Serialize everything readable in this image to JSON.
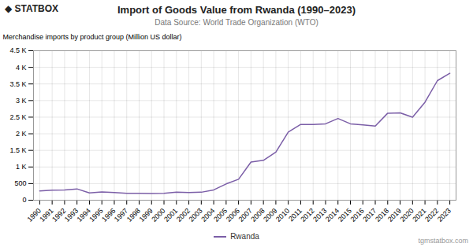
{
  "chart_data": {
    "type": "line",
    "title": "Import of Goods Value from Rwanda (1990–2023)",
    "subtitle": "Data Source: World Trade Organization (WTO)",
    "ylabel": "Merchandise imports by product group (Million US dollar)",
    "x": [
      1990,
      1991,
      1992,
      1993,
      1994,
      1995,
      1996,
      1997,
      1998,
      1999,
      2000,
      2001,
      2002,
      2003,
      2004,
      2005,
      2006,
      2007,
      2008,
      2009,
      2010,
      2011,
      2012,
      2013,
      2014,
      2015,
      2016,
      2017,
      2018,
      2019,
      2020,
      2021,
      2022,
      2023
    ],
    "series": [
      {
        "name": "Rwanda",
        "color": "#7b5ea7",
        "values": [
          280,
          300,
          310,
          340,
          220,
          250,
          230,
          210,
          210,
          200,
          210,
          240,
          230,
          240,
          310,
          490,
          630,
          1150,
          1200,
          1450,
          2050,
          2280,
          2280,
          2300,
          2460,
          2300,
          2270,
          2230,
          2620,
          2630,
          2500,
          2950,
          3600,
          3820
        ]
      }
    ],
    "xlim": [
      1989.5,
      2023.5
    ],
    "xticks": [
      1990,
      1991,
      1992,
      1993,
      1994,
      1995,
      1996,
      1997,
      1998,
      1999,
      2000,
      2001,
      2002,
      2003,
      2004,
      2005,
      2006,
      2007,
      2008,
      2009,
      2010,
      2011,
      2012,
      2013,
      2014,
      2015,
      2016,
      2017,
      2018,
      2019,
      2020,
      2021,
      2022,
      2023
    ],
    "ylim": [
      0,
      4500
    ],
    "yticks": [
      0,
      500,
      {
        "value": 1000,
        "label": "1 K"
      },
      {
        "value": 1500,
        "label": "1.5 K"
      },
      {
        "value": 2000,
        "label": "2 K"
      },
      {
        "value": 2500,
        "label": "2.5 K"
      },
      {
        "value": 3000,
        "label": "3 K"
      },
      {
        "value": 3500,
        "label": "3.5 K"
      },
      {
        "value": 4000,
        "label": "4 K"
      },
      {
        "value": 4500,
        "label": "4.5 K"
      }
    ],
    "grid": true,
    "legend": "bottom",
    "annotations": [
      "◆ STATBOX",
      "tgmstatbox.com"
    ]
  }
}
